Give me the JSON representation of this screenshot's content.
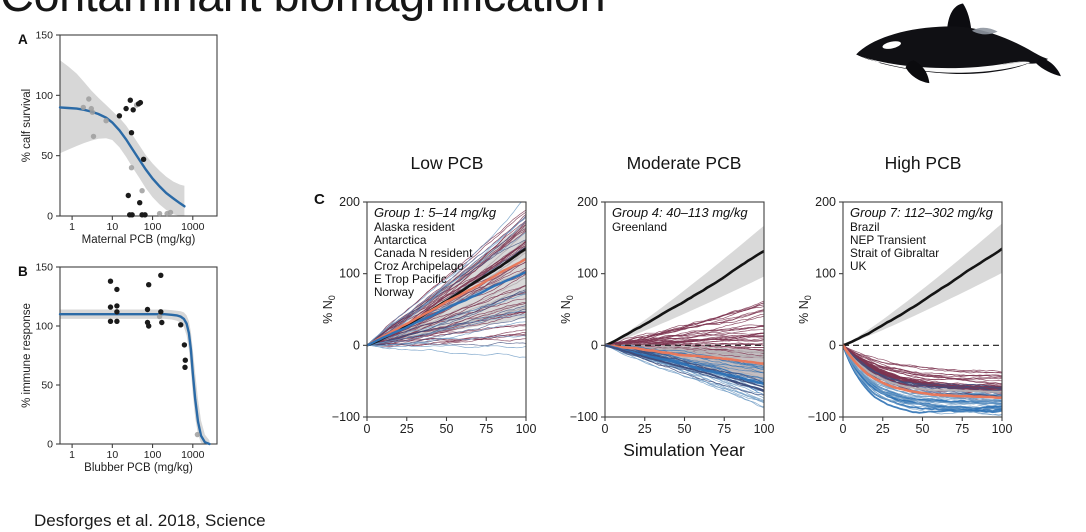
{
  "slide": {
    "title": "Contaminant biomagnification",
    "citation": "Desforges et al. 2018, Science",
    "simulation_year_label": "Simulation Year"
  },
  "colors": {
    "axis": "#3f3f3f",
    "text": "#1f1f1f",
    "fit_blue": "#2b6aa6",
    "band_gray": "#d7d7d7",
    "point_black": "#1b1b1b",
    "point_gray": "#9d9d9d",
    "black_line": "#141414",
    "maroon": "#7d3450",
    "salmon": "#e8795c",
    "mean_blue": "#2f72b5",
    "light_blue": "#6f9bc4",
    "navy": "#3f4e7d",
    "warm_gray": "#b5aeb1"
  },
  "chart_data": [
    {
      "id": "A",
      "panel_label": "A",
      "type": "scatter",
      "xlabel": "Maternal PCB (mg/kg)",
      "ylabel": "% calf survival",
      "xscale": "log",
      "xlim": [
        0.5,
        4000
      ],
      "ylim": [
        0,
        150
      ],
      "xticks": [
        1,
        10,
        100,
        1000
      ],
      "yticks": [
        0,
        50,
        100,
        150
      ],
      "fit_x": [
        0.5,
        0.8,
        1.3,
        2,
        3,
        4.5,
        7,
        10,
        15,
        22,
        32,
        47,
        68,
        100,
        150,
        220,
        330,
        480,
        620
      ],
      "fit_y": [
        90,
        89.5,
        89,
        88,
        86.5,
        84.5,
        81.5,
        77.5,
        71,
        63.5,
        55,
        46.5,
        38.5,
        31,
        24.5,
        19,
        14.5,
        10.5,
        8
      ],
      "ci_upper": [
        129,
        124,
        118,
        111,
        104,
        98,
        92,
        87,
        81.5,
        75,
        67,
        58.5,
        50.5,
        43.5,
        37.5,
        32.5,
        28.5,
        26,
        25
      ],
      "ci_lower": [
        52,
        55,
        58,
        60.5,
        62.5,
        64,
        64.5,
        63,
        57,
        49,
        40,
        31.5,
        23,
        15.5,
        9.5,
        5,
        1.5,
        0,
        0
      ],
      "points_black": [
        [
          15,
          83
        ],
        [
          22,
          89
        ],
        [
          28,
          96
        ],
        [
          33,
          88
        ],
        [
          45,
          93
        ],
        [
          50,
          94
        ],
        [
          30,
          69
        ],
        [
          60,
          47
        ],
        [
          25,
          17
        ],
        [
          48,
          11
        ],
        [
          27,
          1
        ],
        [
          31,
          1
        ],
        [
          55,
          1
        ],
        [
          65,
          1
        ]
      ],
      "points_gray": [
        [
          1.9,
          90
        ],
        [
          2.6,
          97
        ],
        [
          3,
          89
        ],
        [
          3.2,
          86
        ],
        [
          3.4,
          66
        ],
        [
          7,
          79
        ],
        [
          40,
          92
        ],
        [
          30,
          40
        ],
        [
          55,
          21
        ],
        [
          150,
          2
        ],
        [
          230,
          2
        ],
        [
          280,
          3
        ]
      ]
    },
    {
      "id": "B",
      "panel_label": "B",
      "type": "scatter",
      "xlabel": "Blubber PCB (mg/kg)",
      "ylabel": "% immune response",
      "xscale": "log",
      "xlim": [
        0.5,
        4000
      ],
      "ylim": [
        0,
        150
      ],
      "xticks": [
        1,
        10,
        100,
        1000
      ],
      "yticks": [
        0,
        50,
        100,
        150
      ],
      "fit_x": [
        0.5,
        1,
        10,
        100,
        200,
        300,
        400,
        500,
        600,
        700,
        800,
        900,
        1000,
        1150,
        1350,
        1600,
        2000,
        2600
      ],
      "fit_y": [
        110,
        110,
        110,
        110,
        110,
        109.5,
        109,
        108,
        106,
        102,
        94,
        80,
        60,
        38,
        19,
        7,
        1.5,
        0
      ],
      "ci_upper": [
        114,
        114,
        114,
        114,
        114,
        113.5,
        113,
        112.5,
        111.5,
        109,
        104,
        95,
        80,
        60,
        38,
        20,
        8,
        3
      ],
      "ci_lower": [
        106,
        106,
        106,
        106,
        106,
        105.5,
        104.5,
        103,
        99,
        92,
        80,
        62,
        42,
        22,
        8,
        1,
        0,
        0
      ],
      "points_black": [
        [
          9,
          138
        ],
        [
          13,
          131
        ],
        [
          80,
          135
        ],
        [
          160,
          143
        ],
        [
          9,
          116
        ],
        [
          13,
          117
        ],
        [
          13,
          112
        ],
        [
          9,
          104
        ],
        [
          13,
          104
        ],
        [
          75,
          114
        ],
        [
          75,
          103
        ],
        [
          80,
          100
        ],
        [
          160,
          112
        ],
        [
          170,
          103
        ],
        [
          500,
          101
        ],
        [
          620,
          84
        ],
        [
          650,
          71
        ],
        [
          640,
          65
        ]
      ],
      "points_gray": [
        [
          150,
          108
        ],
        [
          1300,
          8
        ]
      ]
    },
    {
      "id": "C1",
      "panel_label": "C",
      "type": "line-ensemble",
      "title": "Low PCB",
      "group_label": "Group 1: 5–14 mg/kg",
      "populations": [
        "Alaska resident",
        "Antarctica",
        "Canada N resident",
        "Croz Archipelago",
        "E Trop Pacific",
        "Norway"
      ],
      "ylabel_main": "% N",
      "ylabel_sub": "0",
      "xlim": [
        0,
        100
      ],
      "ylim": [
        -100,
        200
      ],
      "xticks": [
        0,
        25,
        50,
        75,
        100
      ],
      "yticks": [
        200,
        100,
        0,
        -100
      ],
      "zero_dash": false,
      "band": {
        "up": 172,
        "lo": 38,
        "shape": "lin"
      },
      "ensembles": [
        {
          "color": "warm_gray",
          "count": 14,
          "end": [
            45,
            168
          ],
          "shape": "lin",
          "w": 0.9,
          "op": 0.9,
          "seed": 101
        },
        {
          "color": "maroon",
          "count": 44,
          "end": [
            5,
            190
          ],
          "shape": "lin",
          "w": 0.7,
          "op": 0.85,
          "seed": 102
        },
        {
          "color": "navy",
          "count": 10,
          "end": [
            -5,
            178
          ],
          "shape": "lin",
          "w": 0.7,
          "op": 0.8,
          "seed": 103
        },
        {
          "color": "light_blue",
          "count": 13,
          "end": [
            -12,
            205
          ],
          "shape": "lin",
          "w": 0.7,
          "op": 0.85,
          "seed": 104
        }
      ],
      "mean_lines": [
        {
          "color": "black_line",
          "end": 134,
          "w": 2.6,
          "shape": "pow"
        },
        {
          "color": "salmon",
          "end": 118,
          "w": 2.4,
          "shape": "lin"
        },
        {
          "color": "mean_blue",
          "end": 104,
          "w": 2.4,
          "shape": "lin"
        }
      ]
    },
    {
      "id": "C2",
      "type": "line-ensemble",
      "title": "Moderate PCB",
      "group_label": "Group 4: 40–113 mg/kg",
      "populations": [
        "Greenland"
      ],
      "ylabel_main": "% N",
      "ylabel_sub": "0",
      "xlim": [
        0,
        100
      ],
      "ylim": [
        -100,
        200
      ],
      "xticks": [
        0,
        25,
        50,
        75,
        100
      ],
      "yticks": [
        200,
        100,
        0,
        -100
      ],
      "zero_dash": true,
      "band": {
        "up": 167,
        "lo": 96,
        "shape": "pow"
      },
      "band2": {
        "up": -6,
        "lo": -50,
        "shape": "lin"
      },
      "ensembles": [
        {
          "color": "maroon",
          "count": 36,
          "end": [
            -18,
            62
          ],
          "shape": "lin",
          "w": 0.7,
          "op": 0.85,
          "seed": 201
        },
        {
          "color": "warm_gray",
          "count": 12,
          "end": [
            -10,
            -48
          ],
          "shape": "lin",
          "w": 0.9,
          "op": 0.9,
          "seed": 202
        },
        {
          "color": "mean_blue",
          "count": 18,
          "end": [
            -28,
            -78
          ],
          "shape": "lin",
          "w": 0.7,
          "op": 0.8,
          "seed": 203
        },
        {
          "color": "light_blue",
          "count": 14,
          "end": [
            -45,
            -88
          ],
          "shape": "lin",
          "w": 0.7,
          "op": 0.85,
          "seed": 204
        },
        {
          "color": "navy",
          "count": 8,
          "end": [
            -52,
            -70
          ],
          "shape": "lin",
          "w": 0.8,
          "op": 0.85,
          "seed": 205
        }
      ],
      "mean_lines": [
        {
          "color": "black_line",
          "end": 130,
          "w": 2.6,
          "shape": "pow"
        },
        {
          "color": "salmon",
          "end": -28,
          "w": 2.6,
          "shape": "lin"
        },
        {
          "color": "mean_blue",
          "end": -53,
          "w": 2.6,
          "shape": "lin"
        },
        {
          "color": "navy",
          "end": -62,
          "w": 1.8,
          "shape": "lin"
        }
      ]
    },
    {
      "id": "C3",
      "type": "line-ensemble",
      "title": "High PCB",
      "group_label": "Group 7: 112–302 mg/kg",
      "populations": [
        "Brazil",
        "NEP Transient",
        "Strait of Gibraltar",
        "UK"
      ],
      "ylabel_main": "% N",
      "ylabel_sub": "0",
      "xlim": [
        0,
        100
      ],
      "ylim": [
        -100,
        200
      ],
      "xticks": [
        0,
        25,
        50,
        75,
        100
      ],
      "yticks": [
        200,
        100,
        0,
        -100
      ],
      "zero_dash": true,
      "band": {
        "up": 170,
        "lo": 101,
        "shape": "pow"
      },
      "ensembles": [
        {
          "color": "maroon",
          "count": 30,
          "end": [
            -36,
            -72
          ],
          "shape": "sat",
          "tau": 26,
          "w": 0.7,
          "op": 0.85,
          "seed": 301
        },
        {
          "color": "maroon",
          "count": 4,
          "end": [
            -56,
            -66
          ],
          "shape": "sat",
          "tau": 24,
          "w": 2.2,
          "op": 0.9,
          "seed": 302
        },
        {
          "color": "mean_blue",
          "count": 8,
          "end": [
            -78,
            -88
          ],
          "shape": "sat",
          "tau": 16,
          "w": 1.8,
          "op": 0.9,
          "seed": 303
        },
        {
          "color": "light_blue",
          "count": 18,
          "end": [
            -68,
            -90
          ],
          "shape": "sat",
          "tau": 17,
          "w": 0.7,
          "op": 0.85,
          "seed": 304
        },
        {
          "color": "navy",
          "count": 5,
          "end": [
            -58,
            -74
          ],
          "shape": "sat",
          "tau": 22,
          "w": 0.9,
          "op": 0.85,
          "seed": 305
        }
      ],
      "mean_lines": [
        {
          "color": "black_line",
          "end": 135,
          "w": 2.6,
          "shape": "pow"
        },
        {
          "color": "warm_gray",
          "end": -66,
          "w": 2.0,
          "shape": "sat",
          "tau": 20
        },
        {
          "color": "salmon",
          "end": -73,
          "w": 2.6,
          "shape": "sat",
          "tau": 20
        }
      ]
    }
  ]
}
